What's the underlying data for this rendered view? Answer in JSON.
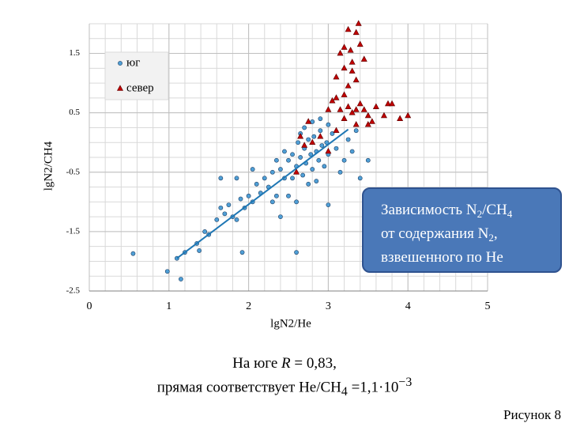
{
  "chart_data": {
    "type": "scatter",
    "xlabel": "lgN2/He",
    "ylabel": "lgN2/CH4",
    "xlim": [
      0,
      5
    ],
    "xticks": [
      0,
      1,
      2,
      3,
      4,
      5
    ],
    "ylim": [
      -2.5,
      2.0
    ],
    "yticks": [
      -2.5,
      -1.5,
      -0.5,
      0.5,
      1.5
    ],
    "grid": true,
    "legend": "upper left",
    "series": [
      {
        "name": "юг",
        "color": "#4f9fd6",
        "marker": "circle",
        "x": [
          0.55,
          0.98,
          1.1,
          1.15,
          1.2,
          1.35,
          1.38,
          1.45,
          1.5,
          1.6,
          1.65,
          1.7,
          1.75,
          1.8,
          1.85,
          1.9,
          1.95,
          2.0,
          2.05,
          2.1,
          2.15,
          2.2,
          2.25,
          2.3,
          2.35,
          2.4,
          2.45,
          1.92,
          2.6,
          2.5,
          2.55,
          2.6,
          2.62,
          2.65,
          2.7,
          2.72,
          2.75,
          2.78,
          2.8,
          2.82,
          2.85,
          2.88,
          2.9,
          2.92,
          2.95,
          2.98,
          3.0,
          3.05,
          3.1,
          3.15,
          3.2,
          3.3,
          3.4,
          3.5,
          2.55,
          2.68,
          2.75,
          2.85,
          3.0,
          2.6,
          2.7,
          2.8,
          2.9,
          3.0,
          2.65,
          1.65,
          1.85,
          2.05,
          2.3,
          2.4,
          2.5,
          3.25,
          3.35,
          2.45,
          2.35
        ],
        "values": [
          -1.87,
          -2.17,
          -1.95,
          -2.3,
          -1.85,
          -1.7,
          -1.82,
          -1.5,
          -1.55,
          -1.3,
          -1.1,
          -1.2,
          -1.05,
          -1.25,
          -1.3,
          -0.95,
          -1.1,
          -0.9,
          -1.0,
          -0.7,
          -0.85,
          -0.6,
          -0.75,
          -0.5,
          -0.9,
          -0.45,
          -0.6,
          -1.85,
          -1.85,
          -0.3,
          -0.2,
          -0.4,
          0.0,
          -0.25,
          -0.1,
          -0.35,
          0.05,
          -0.2,
          -0.45,
          0.1,
          -0.15,
          -0.3,
          0.2,
          -0.05,
          -0.4,
          0.0,
          -0.2,
          0.15,
          -0.1,
          -0.5,
          -0.3,
          -0.15,
          -0.6,
          -0.3,
          -0.6,
          -0.55,
          -0.7,
          -0.65,
          -1.05,
          -1.0,
          0.25,
          0.35,
          0.4,
          0.3,
          0.15,
          -0.6,
          -0.6,
          -0.45,
          -1.0,
          -1.25,
          -0.9,
          0.05,
          0.2,
          -0.15,
          -0.3
        ]
      },
      {
        "name": "север",
        "color": "#c00000",
        "marker": "triangle",
        "x": [
          2.6,
          2.65,
          2.75,
          2.8,
          2.9,
          3.0,
          3.1,
          3.15,
          3.2,
          3.25,
          3.3,
          3.35,
          3.4,
          3.45,
          3.5,
          3.55,
          3.6,
          3.7,
          3.75,
          3.8,
          3.9,
          4.0,
          3.15,
          3.2,
          3.25,
          3.28,
          3.3,
          3.2,
          3.1,
          3.25,
          3.3,
          3.35,
          3.38,
          3.35,
          3.4,
          3.45,
          3.05,
          3.35,
          3.5,
          2.7,
          3.0,
          3.1,
          3.2
        ],
        "values": [
          -0.5,
          0.1,
          0.35,
          0.0,
          0.1,
          0.55,
          0.2,
          0.55,
          0.4,
          0.6,
          0.5,
          0.55,
          0.65,
          0.55,
          0.45,
          0.35,
          0.6,
          0.45,
          0.65,
          0.65,
          0.4,
          0.45,
          1.5,
          1.6,
          1.9,
          1.55,
          1.35,
          1.25,
          1.1,
          0.95,
          1.2,
          1.05,
          2.0,
          1.85,
          1.65,
          1.4,
          0.7,
          0.3,
          0.3,
          -0.05,
          -0.15,
          0.75,
          0.8
        ]
      }
    ],
    "trendline": {
      "color": "#1f77b4",
      "x": [
        1.1,
        3.25
      ],
      "y": [
        -1.95,
        0.22
      ]
    }
  },
  "textbox": {
    "lines": [
      [
        "Зависимость N",
        "2",
        "/CH",
        "4"
      ],
      [
        "от содержания N",
        "2",
        ","
      ],
      [
        "взвешенного по He"
      ]
    ]
  },
  "caption": {
    "line1": {
      "before": "На юге ",
      "italic": "R",
      "after": " = 0,83,"
    },
    "line2": {
      "text": "прямая  соответствует He/CH",
      "sub": "4",
      "mid": " =1,1·10",
      "sup": "−3"
    }
  },
  "figure_label": "Рисунок 8"
}
